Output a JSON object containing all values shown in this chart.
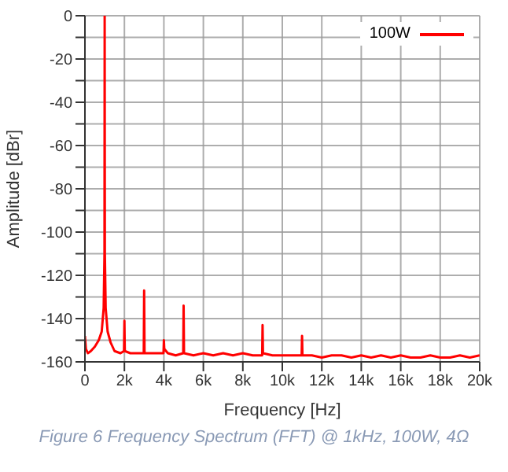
{
  "chart_data": {
    "type": "line",
    "xlabel": "Frequency [Hz]",
    "ylabel": "Amplitude [dBr]",
    "annotations": [
      "Figure 6 Frequency Spectrum (FFT) @ 1kHz, 100W, 4Ω"
    ],
    "xlim": [
      0,
      20000
    ],
    "xticks": [
      {
        "value": 0,
        "label": "0"
      },
      {
        "value": 2000,
        "label": "2k"
      },
      {
        "value": 4000,
        "label": "4k"
      },
      {
        "value": 6000,
        "label": "6k"
      },
      {
        "value": 8000,
        "label": "8k"
      },
      {
        "value": 10000,
        "label": "10k"
      },
      {
        "value": 12000,
        "label": "12k"
      },
      {
        "value": 14000,
        "label": "14k"
      },
      {
        "value": 16000,
        "label": "16k"
      },
      {
        "value": 18000,
        "label": "18k"
      },
      {
        "value": 20000,
        "label": "20k"
      }
    ],
    "ylim": [
      -160,
      0
    ],
    "yticks": [
      -160,
      {
        "value": -150,
        "label": null
      },
      -140,
      {
        "value": -130,
        "label": null
      },
      -120,
      {
        "value": -110,
        "label": null
      },
      -100,
      {
        "value": -90,
        "label": null
      },
      -80,
      {
        "value": -70,
        "label": null
      },
      -60,
      {
        "value": -50,
        "label": null
      },
      -40,
      {
        "value": -30,
        "label": null
      },
      -20,
      {
        "value": -10,
        "label": null
      },
      0
    ],
    "grid": true,
    "legend": "top right",
    "marker": "none",
    "line_style": "solid",
    "series": [
      {
        "name": "100W",
        "color": "#ff0000",
        "x": [
          0,
          50,
          150,
          300,
          500,
          700,
          850,
          950,
          990,
          1000,
          1010,
          1050,
          1150,
          1300,
          1500,
          1800,
          1980,
          2000,
          2020,
          2300,
          2700,
          2980,
          3000,
          3020,
          3400,
          3800,
          3980,
          4000,
          4020,
          4200,
          4600,
          4980,
          5000,
          5020,
          5500,
          6000,
          6500,
          7000,
          7500,
          8000,
          8500,
          8980,
          9000,
          9020,
          9500,
          10000,
          10500,
          10980,
          11000,
          11020,
          11500,
          12000,
          12500,
          13000,
          13500,
          14000,
          14500,
          15000,
          15500,
          16000,
          16500,
          17000,
          17500,
          18000,
          18500,
          19000,
          19500,
          20000
        ],
        "values": [
          -148,
          -154,
          -156,
          -155,
          -153,
          -150,
          -146,
          -135,
          -110,
          0,
          -110,
          -135,
          -146,
          -151,
          -155,
          -156,
          -155,
          -141,
          -155,
          -156,
          -156,
          -156,
          -127,
          -156,
          -156,
          -156,
          -156,
          -150,
          -154,
          -156,
          -157,
          -156,
          -134,
          -156,
          -157,
          -156,
          -157,
          -156,
          -157,
          -156,
          -157,
          -157,
          -143,
          -156,
          -157,
          -157,
          -157,
          -157,
          -148,
          -157,
          -157,
          -158,
          -157,
          -157,
          -158,
          -157,
          -158,
          -157,
          -158,
          -157,
          -158,
          -158,
          -157,
          -158,
          -158,
          -157,
          -158,
          -157
        ]
      }
    ]
  }
}
